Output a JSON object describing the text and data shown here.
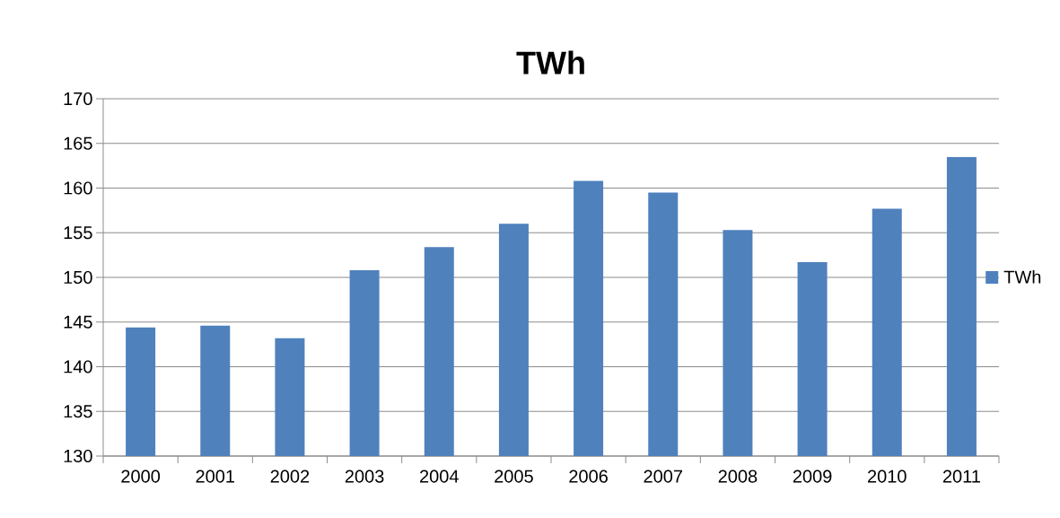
{
  "chart_data": {
    "type": "bar",
    "title": "TWh",
    "categories": [
      "2000",
      "2001",
      "2002",
      "2003",
      "2004",
      "2005",
      "2006",
      "2007",
      "2008",
      "2009",
      "2010",
      "2011"
    ],
    "series": [
      {
        "name": "TWh",
        "color": "#4f81bd",
        "values": [
          144.4,
          144.6,
          143.2,
          150.8,
          153.4,
          156.0,
          160.8,
          159.5,
          155.3,
          151.7,
          157.7,
          163.5
        ]
      }
    ],
    "ylim": [
      130,
      170
    ],
    "yticks": [
      130,
      135,
      140,
      145,
      150,
      155,
      160,
      165,
      170
    ],
    "grid": "y",
    "legend": "right"
  }
}
